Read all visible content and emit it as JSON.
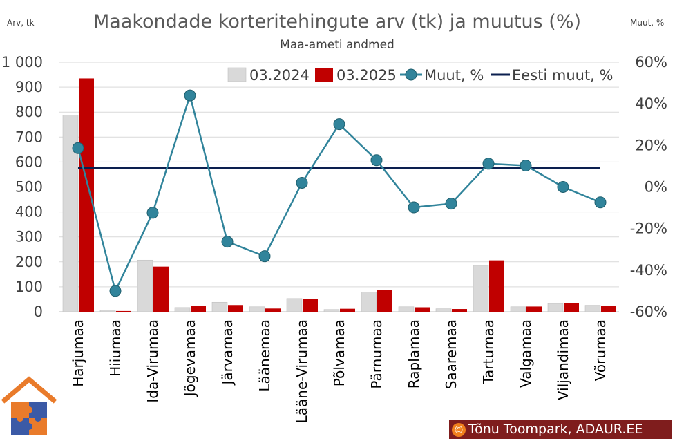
{
  "chart_data": {
    "type": "bar",
    "title": "Maakondade korteritehingute arv (tk) ja muutus (%)",
    "subtitle": "Maa-ameti andmed",
    "y_left_unit": "Arv, tk",
    "y_right_unit": "Muut, %",
    "y_left_ticks": [
      "0",
      "100",
      "200",
      "300",
      "400",
      "500",
      "600",
      "700",
      "800",
      "900",
      "1 000"
    ],
    "y_right_ticks": [
      "-60%",
      "-40%",
      "-20%",
      "0%",
      "20%",
      "40%",
      "60%"
    ],
    "ylim_left": [
      0,
      1000
    ],
    "ylim_right": [
      -60,
      60
    ],
    "grid": true,
    "legend_position": "top",
    "categories": [
      "Harjumaa",
      "Hiiumaa",
      "Ida-Virumaa",
      "Jõgevamaa",
      "Järvamaa",
      "Läänemaa",
      "Lääne-Virumaa",
      "Põlvamaa",
      "Pärnumaa",
      "Raplamaa",
      "Saaremaa",
      "Tartumaa",
      "Valgamaa",
      "Viljandimaa",
      "Võrumaa"
    ],
    "series": [
      {
        "name": "03.2024",
        "kind": "bar",
        "axis": "left",
        "color": "#d9d9d9",
        "values": [
          788,
          6,
          207,
          17,
          38,
          20,
          53,
          9,
          79,
          20,
          12,
          186,
          20,
          33,
          26
        ]
      },
      {
        "name": "03.2025",
        "kind": "bar",
        "axis": "left",
        "color": "#c00000",
        "values": [
          935,
          3,
          181,
          24,
          27,
          13,
          51,
          12,
          87,
          18,
          11,
          206,
          21,
          34,
          23
        ]
      },
      {
        "name": "Muut, %",
        "kind": "line-marker",
        "axis": "right",
        "color": "#31849b",
        "values": [
          18.7,
          -50,
          -12.4,
          44,
          -26.3,
          -33.3,
          2,
          30.2,
          12.9,
          -9.8,
          -8,
          11.2,
          10.3,
          0,
          -7.4
        ]
      },
      {
        "name": "Eesti muut, %",
        "kind": "line",
        "axis": "right",
        "color": "#0b1f4f",
        "values": [
          9,
          9,
          9,
          9,
          9,
          9,
          9,
          9,
          9,
          9,
          9,
          9,
          9,
          9,
          9
        ]
      }
    ]
  },
  "credit": {
    "copyright_symbol": "©",
    "text": "Tõnu Toompark, ADAUR.EE"
  }
}
